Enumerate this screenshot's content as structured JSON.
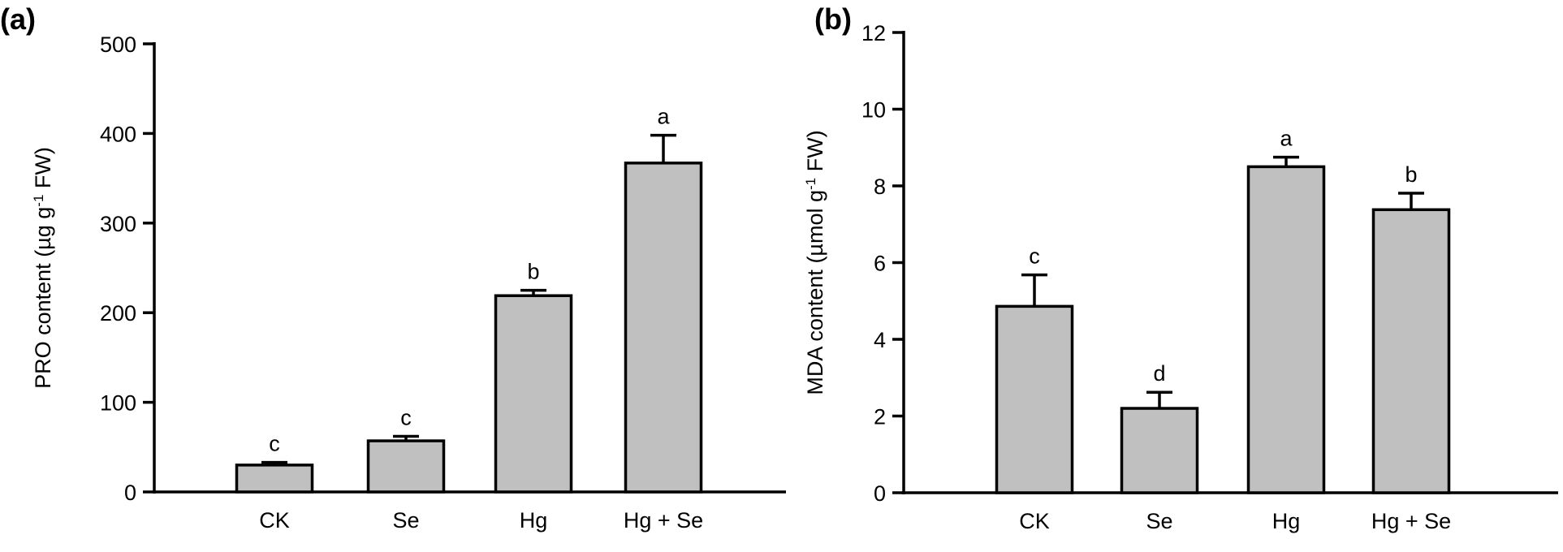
{
  "chart_data": [
    {
      "type": "bar",
      "panel_label": "(a)",
      "categories": [
        "CK",
        "Se",
        "Hg",
        "Hg + Se"
      ],
      "values": [
        30,
        57,
        219,
        367
      ],
      "errors": [
        3,
        5,
        6,
        31
      ],
      "significance": [
        "c",
        "c",
        "b",
        "a"
      ],
      "ylabel_main": "PRO content (µg g",
      "ylabel_sup": "-1",
      "ylabel_tail": " FW)",
      "ylim": [
        0,
        500
      ],
      "yticks": [
        0,
        100,
        200,
        300,
        400,
        500
      ],
      "bar_color": "#c0c0c0",
      "grid": false
    },
    {
      "type": "bar",
      "panel_label": "(b)",
      "categories": [
        "CK",
        "Se",
        "Hg",
        "Hg + Se"
      ],
      "values": [
        4.86,
        2.2,
        8.5,
        7.38
      ],
      "errors": [
        0.82,
        0.42,
        0.25,
        0.43
      ],
      "significance": [
        "c",
        "d",
        "a",
        "b"
      ],
      "ylabel_main": "MDA content (µmol g",
      "ylabel_sup": "-1",
      "ylabel_tail": " FW)",
      "ylim": [
        0,
        12
      ],
      "yticks": [
        0,
        2,
        4,
        6,
        8,
        10,
        12
      ],
      "bar_color": "#c0c0c0",
      "grid": false
    }
  ]
}
